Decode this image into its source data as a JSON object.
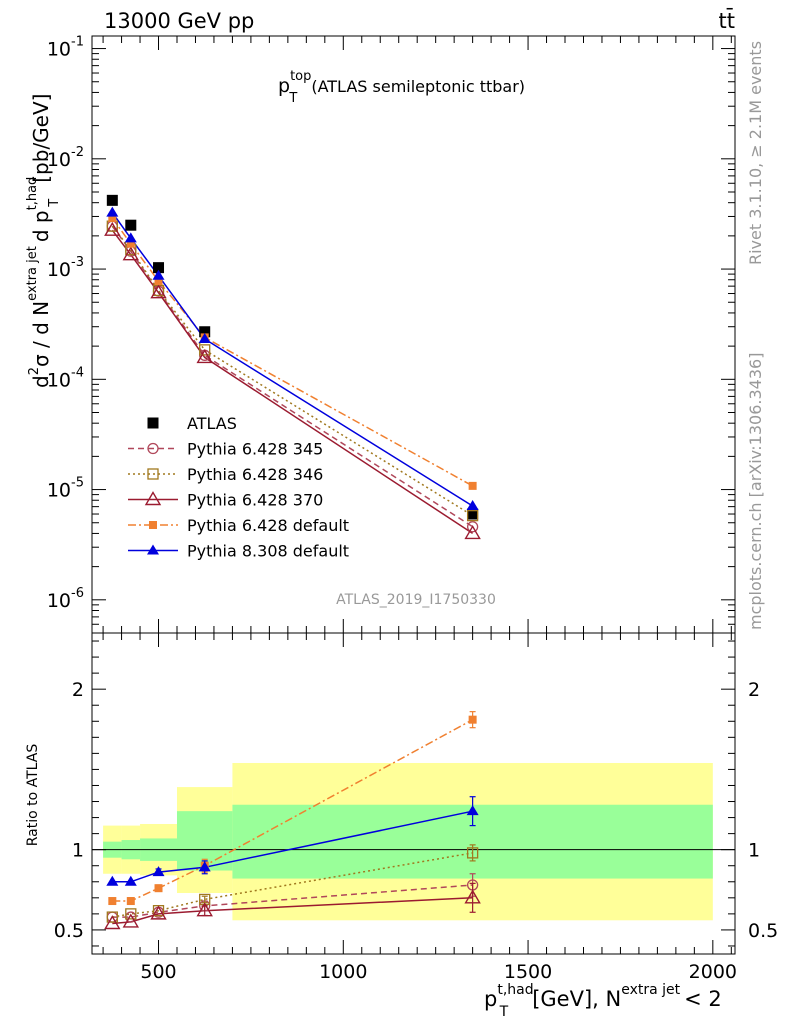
{
  "header": {
    "left": "13000 GeV pp",
    "right": "tt̄"
  },
  "side_labels": {
    "top": "Rivet 3.1.10, ≥ 2.1M events",
    "bottom": "mcplots.cern.ch [arXiv:1306.3436]"
  },
  "watermark": "ATLAS_2019_I1750330",
  "chart_data": [
    {
      "type": "line",
      "title": {
        "main": "p",
        "sup": "top",
        "sub": "T",
        "suffix": "(ATLAS semileptonic ttbar)"
      },
      "ylabel": {
        "a": "d",
        "sup1": "2",
        "b": "σ / d N",
        "sup2": "extra jet",
        "c": "d p",
        "sup3": "t,had",
        "sub3": "T",
        "d": "[pb/GeV]"
      },
      "yscale": "log",
      "ylim": [
        5e-07,
        0.13
      ],
      "xlim": [
        320,
        2060
      ],
      "yticks": [
        {
          "value": 1e-06,
          "base": "10",
          "exp": "-6"
        },
        {
          "value": 1e-05,
          "base": "10",
          "exp": "-5"
        },
        {
          "value": 0.0001,
          "base": "10",
          "exp": "-4"
        },
        {
          "value": 0.001,
          "base": "10",
          "exp": "-3"
        },
        {
          "value": 0.01,
          "base": "10",
          "exp": "-2"
        },
        {
          "value": 0.1,
          "base": "10",
          "exp": "-1"
        }
      ],
      "legend_position": "bottom-left",
      "series": [
        {
          "name": "ATLAS",
          "color": "#000000",
          "marker": "square-filled",
          "line": "none",
          "x": [
            375,
            425,
            500,
            625,
            1350
          ],
          "y": [
            0.0042,
            0.0025,
            0.00103,
            0.00027,
            6e-06
          ]
        },
        {
          "name": "Pythia 6.428 345",
          "color": "#b0475a",
          "marker": "circle-open",
          "line": "dashed",
          "x": [
            375,
            425,
            500,
            625,
            1350
          ],
          "y": [
            0.00245,
            0.00145,
            0.00063,
            0.000165,
            4.6e-06
          ]
        },
        {
          "name": "Pythia 6.428 346",
          "color": "#a0781e",
          "marker": "square-open",
          "line": "dotted",
          "x": [
            375,
            425,
            500,
            625,
            1350
          ],
          "y": [
            0.00245,
            0.0015,
            0.00064,
            0.000185,
            5.8e-06
          ]
        },
        {
          "name": "Pythia 6.428 370",
          "color": "#9b1b30",
          "marker": "triangle-open",
          "line": "solid",
          "x": [
            375,
            425,
            500,
            625,
            1350
          ],
          "y": [
            0.00225,
            0.00135,
            0.00061,
            0.000158,
            4e-06
          ]
        },
        {
          "name": "Pythia 6.428 default",
          "color": "#f08030",
          "marker": "square-filled-small",
          "line": "dashdot",
          "x": [
            375,
            425,
            500,
            625,
            1350
          ],
          "y": [
            0.0029,
            0.0017,
            0.00078,
            0.00024,
            1.08e-05
          ]
        },
        {
          "name": "Pythia 8.308 default",
          "color": "#0000dd",
          "marker": "triangle-filled",
          "line": "solid",
          "x": [
            375,
            425,
            500,
            625,
            1350
          ],
          "y": [
            0.00325,
            0.0019,
            0.00087,
            0.000232,
            7.1e-06
          ]
        }
      ]
    },
    {
      "type": "line",
      "ylabel": "Ratio to ATLAS",
      "ylim": [
        0.35,
        2.35
      ],
      "xlim": [
        320,
        2060
      ],
      "yticks": [
        {
          "value": 0.5,
          "label": "0.5"
        },
        {
          "value": 1,
          "label": "1"
        },
        {
          "value": 2,
          "label": "2"
        }
      ],
      "xticks": [
        {
          "value": 500,
          "label": "500"
        },
        {
          "value": 1000,
          "label": "1000"
        },
        {
          "value": 1500,
          "label": "1500"
        },
        {
          "value": 2000,
          "label": "2000"
        }
      ],
      "xlabel": {
        "a": "p",
        "sup1": "t,had",
        "sub1": "T",
        "b": "[GeV], N",
        "sup2": "extra jet",
        "c": "< 2"
      },
      "bands": [
        {
          "x0": 350,
          "x1": 400,
          "yellow": [
            0.85,
            1.15
          ],
          "green": [
            0.95,
            1.05
          ]
        },
        {
          "x0": 400,
          "x1": 450,
          "yellow": [
            0.85,
            1.15
          ],
          "green": [
            0.94,
            1.06
          ]
        },
        {
          "x0": 450,
          "x1": 550,
          "yellow": [
            0.84,
            1.16
          ],
          "green": [
            0.93,
            1.07
          ]
        },
        {
          "x0": 550,
          "x1": 700,
          "yellow": [
            0.73,
            1.39
          ],
          "green": [
            0.87,
            1.24
          ]
        },
        {
          "x0": 700,
          "x1": 2000,
          "yellow": [
            0.56,
            1.54
          ],
          "green": [
            0.82,
            1.28
          ]
        }
      ],
      "series": [
        {
          "name": "Pythia 6.428 345",
          "color": "#b0475a",
          "marker": "circle-open",
          "line": "dashed",
          "x": [
            375,
            425,
            500,
            625,
            1350
          ],
          "y": [
            0.58,
            0.58,
            0.61,
            0.65,
            0.78
          ],
          "err": [
            0.01,
            0.01,
            0.01,
            0.03,
            0.07
          ]
        },
        {
          "name": "Pythia 6.428 346",
          "color": "#a0781e",
          "marker": "square-open",
          "line": "dotted",
          "x": [
            375,
            425,
            500,
            625,
            1350
          ],
          "y": [
            0.58,
            0.6,
            0.62,
            0.69,
            0.98
          ],
          "err": [
            0.01,
            0.01,
            0.01,
            0.02,
            0.05
          ]
        },
        {
          "name": "Pythia 6.428 370",
          "color": "#9b1b30",
          "marker": "triangle-open",
          "line": "solid",
          "x": [
            375,
            425,
            500,
            625,
            1350
          ],
          "y": [
            0.54,
            0.55,
            0.6,
            0.62,
            0.7
          ],
          "err": [
            0.01,
            0.01,
            0.01,
            0.03,
            0.09
          ]
        },
        {
          "name": "Pythia 6.428 default",
          "color": "#f08030",
          "marker": "square-filled-small",
          "line": "dashdot",
          "x": [
            375,
            425,
            500,
            625,
            1350
          ],
          "y": [
            0.68,
            0.68,
            0.76,
            0.9,
            1.81
          ],
          "err": [
            0.01,
            0.02,
            0.02,
            0.04,
            0.05
          ]
        },
        {
          "name": "Pythia 8.308 default",
          "color": "#0000dd",
          "marker": "triangle-filled",
          "line": "solid",
          "x": [
            375,
            425,
            500,
            625,
            1350
          ],
          "y": [
            0.8,
            0.8,
            0.86,
            0.89,
            1.24
          ],
          "err": [
            0.01,
            0.01,
            0.02,
            0.04,
            0.09
          ]
        }
      ]
    }
  ]
}
